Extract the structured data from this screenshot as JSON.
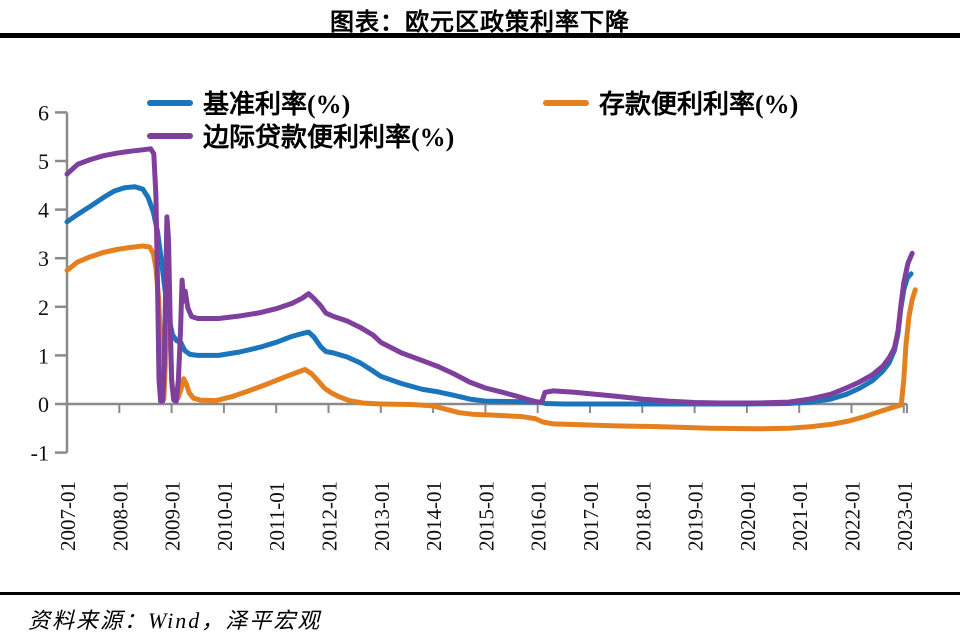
{
  "header": {
    "title": "图表：欧元区政策利率下降"
  },
  "legend": [
    {
      "key": "benchmark-rate",
      "label": "基准利率(%)",
      "color": "#1b75bc"
    },
    {
      "key": "deposit-facility-rate",
      "label": "存款便利利率(%)",
      "color": "#e5801f"
    },
    {
      "key": "marginal-lending-rate",
      "label": "边际贷款便利利率(%)",
      "color": "#7e3f9d"
    }
  ],
  "footer": {
    "source": "资料来源：Wind，泽平宏观"
  },
  "chart_data": {
    "type": "line",
    "title": "图表：欧元区政策利率下降",
    "xlabel": "",
    "ylabel": "",
    "grid": false,
    "legend_position": "top",
    "ylim": [
      -1,
      6
    ],
    "xlim": [
      2007,
      2023.25
    ],
    "y_ticks": [
      6,
      5,
      4,
      3,
      2,
      1,
      0,
      -1
    ],
    "x_ticks": [
      "2007-01",
      "2008-01",
      "2009-01",
      "2010-01",
      "2011-01",
      "2012-01",
      "2013-01",
      "2014-01",
      "2015-01",
      "2016-01",
      "2017-01",
      "2018-01",
      "2019-01",
      "2020-01",
      "2021-01",
      "2022-01",
      "2023-01"
    ],
    "axis_color": "#8a8a8a",
    "series": [
      {
        "name": "基准利率(%)",
        "key": "benchmark-rate",
        "color": "#1b75bc",
        "points": [
          [
            2007.0,
            3.75
          ],
          [
            2007.2,
            3.9
          ],
          [
            2007.45,
            4.07
          ],
          [
            2007.7,
            4.25
          ],
          [
            2007.9,
            4.38
          ],
          [
            2008.1,
            4.45
          ],
          [
            2008.3,
            4.47
          ],
          [
            2008.45,
            4.42
          ],
          [
            2008.55,
            4.25
          ],
          [
            2008.65,
            3.95
          ],
          [
            2008.73,
            3.55
          ],
          [
            2008.8,
            3.0
          ],
          [
            2008.88,
            2.3
          ],
          [
            2008.95,
            1.75
          ],
          [
            2009.02,
            1.42
          ],
          [
            2009.1,
            1.3
          ],
          [
            2009.18,
            1.26
          ],
          [
            2009.25,
            1.1
          ],
          [
            2009.35,
            1.02
          ],
          [
            2009.5,
            1.0
          ],
          [
            2009.9,
            1.0
          ],
          [
            2010.3,
            1.07
          ],
          [
            2010.7,
            1.17
          ],
          [
            2011.0,
            1.27
          ],
          [
            2011.3,
            1.39
          ],
          [
            2011.5,
            1.45
          ],
          [
            2011.62,
            1.48
          ],
          [
            2011.72,
            1.38
          ],
          [
            2011.85,
            1.18
          ],
          [
            2011.95,
            1.08
          ],
          [
            2012.1,
            1.05
          ],
          [
            2012.35,
            0.97
          ],
          [
            2012.6,
            0.85
          ],
          [
            2012.85,
            0.68
          ],
          [
            2013.0,
            0.57
          ],
          [
            2013.4,
            0.42
          ],
          [
            2013.8,
            0.3
          ],
          [
            2014.1,
            0.25
          ],
          [
            2014.4,
            0.18
          ],
          [
            2014.7,
            0.1
          ],
          [
            2015.0,
            0.06
          ],
          [
            2015.6,
            0.05
          ],
          [
            2016.05,
            0.04
          ],
          [
            2016.15,
            0.01
          ],
          [
            2016.5,
            0.0
          ],
          [
            2018.0,
            0.0
          ],
          [
            2020.0,
            0.0
          ],
          [
            2020.8,
            0.01
          ],
          [
            2021.2,
            0.04
          ],
          [
            2021.6,
            0.1
          ],
          [
            2021.9,
            0.2
          ],
          [
            2022.15,
            0.32
          ],
          [
            2022.4,
            0.48
          ],
          [
            2022.6,
            0.68
          ],
          [
            2022.72,
            0.85
          ],
          [
            2022.82,
            1.1
          ],
          [
            2022.89,
            1.45
          ],
          [
            2022.94,
            1.95
          ],
          [
            2023.0,
            2.35
          ],
          [
            2023.07,
            2.6
          ],
          [
            2023.14,
            2.68
          ]
        ]
      },
      {
        "name": "存款便利利率(%)",
        "key": "deposit-facility-rate",
        "color": "#e5801f",
        "points": [
          [
            2007.0,
            2.75
          ],
          [
            2007.2,
            2.92
          ],
          [
            2007.45,
            3.03
          ],
          [
            2007.7,
            3.12
          ],
          [
            2007.95,
            3.18
          ],
          [
            2008.2,
            3.22
          ],
          [
            2008.45,
            3.25
          ],
          [
            2008.58,
            3.23
          ],
          [
            2008.65,
            3.1
          ],
          [
            2008.7,
            2.8
          ],
          [
            2008.75,
            2.2
          ],
          [
            2008.79,
            1.3
          ],
          [
            2008.82,
            0.5
          ],
          [
            2008.85,
            0.1
          ],
          [
            2008.88,
            0.8
          ],
          [
            2008.9,
            2.2
          ],
          [
            2008.92,
            3.15
          ],
          [
            2008.95,
            2.4
          ],
          [
            2008.98,
            1.1
          ],
          [
            2009.01,
            0.35
          ],
          [
            2009.05,
            0.1
          ],
          [
            2009.12,
            0.12
          ],
          [
            2009.18,
            0.3
          ],
          [
            2009.23,
            0.52
          ],
          [
            2009.28,
            0.42
          ],
          [
            2009.34,
            0.22
          ],
          [
            2009.42,
            0.12
          ],
          [
            2009.55,
            0.08
          ],
          [
            2009.85,
            0.07
          ],
          [
            2010.15,
            0.15
          ],
          [
            2010.5,
            0.28
          ],
          [
            2010.85,
            0.42
          ],
          [
            2011.15,
            0.55
          ],
          [
            2011.4,
            0.65
          ],
          [
            2011.55,
            0.71
          ],
          [
            2011.68,
            0.62
          ],
          [
            2011.8,
            0.48
          ],
          [
            2011.92,
            0.33
          ],
          [
            2012.05,
            0.23
          ],
          [
            2012.2,
            0.15
          ],
          [
            2012.4,
            0.07
          ],
          [
            2012.65,
            0.02
          ],
          [
            2013.0,
            0.0
          ],
          [
            2013.6,
            -0.01
          ],
          [
            2014.0,
            -0.04
          ],
          [
            2014.25,
            -0.11
          ],
          [
            2014.5,
            -0.18
          ],
          [
            2014.75,
            -0.21
          ],
          [
            2015.2,
            -0.23
          ],
          [
            2015.7,
            -0.26
          ],
          [
            2015.95,
            -0.3
          ],
          [
            2016.1,
            -0.37
          ],
          [
            2016.3,
            -0.41
          ],
          [
            2016.9,
            -0.43
          ],
          [
            2017.5,
            -0.45
          ],
          [
            2018.1,
            -0.46
          ],
          [
            2018.7,
            -0.48
          ],
          [
            2019.3,
            -0.5
          ],
          [
            2020.2,
            -0.51
          ],
          [
            2020.8,
            -0.5
          ],
          [
            2021.2,
            -0.47
          ],
          [
            2021.6,
            -0.42
          ],
          [
            2021.95,
            -0.35
          ],
          [
            2022.25,
            -0.26
          ],
          [
            2022.5,
            -0.17
          ],
          [
            2022.7,
            -0.1
          ],
          [
            2022.85,
            -0.05
          ],
          [
            2022.95,
            -0.02
          ],
          [
            2023.0,
            0.5
          ],
          [
            2023.04,
            1.2
          ],
          [
            2023.1,
            1.8
          ],
          [
            2023.16,
            2.15
          ],
          [
            2023.22,
            2.35
          ]
        ]
      },
      {
        "name": "边际贷款便利利率(%)",
        "key": "marginal-lending-rate",
        "color": "#7e3f9d",
        "points": [
          [
            2007.0,
            4.73
          ],
          [
            2007.2,
            4.93
          ],
          [
            2007.45,
            5.03
          ],
          [
            2007.7,
            5.11
          ],
          [
            2007.95,
            5.16
          ],
          [
            2008.2,
            5.2
          ],
          [
            2008.45,
            5.23
          ],
          [
            2008.6,
            5.25
          ],
          [
            2008.66,
            5.15
          ],
          [
            2008.7,
            4.3
          ],
          [
            2008.73,
            2.5
          ],
          [
            2008.76,
            0.5
          ],
          [
            2008.79,
            0.06
          ],
          [
            2008.83,
            0.06
          ],
          [
            2008.86,
            0.8
          ],
          [
            2008.89,
            2.6
          ],
          [
            2008.91,
            3.85
          ],
          [
            2008.94,
            3.4
          ],
          [
            2008.97,
            1.9
          ],
          [
            2009.0,
            0.5
          ],
          [
            2009.04,
            0.08
          ],
          [
            2009.09,
            0.06
          ],
          [
            2009.13,
            0.5
          ],
          [
            2009.17,
            1.5
          ],
          [
            2009.2,
            2.55
          ],
          [
            2009.23,
            2.12
          ],
          [
            2009.26,
            2.32
          ],
          [
            2009.31,
            1.98
          ],
          [
            2009.38,
            1.8
          ],
          [
            2009.5,
            1.76
          ],
          [
            2009.9,
            1.76
          ],
          [
            2010.3,
            1.81
          ],
          [
            2010.7,
            1.88
          ],
          [
            2011.0,
            1.96
          ],
          [
            2011.3,
            2.07
          ],
          [
            2011.5,
            2.18
          ],
          [
            2011.62,
            2.27
          ],
          [
            2011.72,
            2.17
          ],
          [
            2011.85,
            2.02
          ],
          [
            2011.95,
            1.87
          ],
          [
            2012.1,
            1.8
          ],
          [
            2012.35,
            1.71
          ],
          [
            2012.6,
            1.58
          ],
          [
            2012.85,
            1.42
          ],
          [
            2013.0,
            1.27
          ],
          [
            2013.4,
            1.05
          ],
          [
            2013.8,
            0.89
          ],
          [
            2014.1,
            0.77
          ],
          [
            2014.4,
            0.62
          ],
          [
            2014.7,
            0.45
          ],
          [
            2015.0,
            0.33
          ],
          [
            2015.3,
            0.25
          ],
          [
            2015.6,
            0.16
          ],
          [
            2015.85,
            0.08
          ],
          [
            2016.0,
            0.04
          ],
          [
            2016.08,
            0.05
          ],
          [
            2016.14,
            0.24
          ],
          [
            2016.3,
            0.27
          ],
          [
            2016.7,
            0.24
          ],
          [
            2017.1,
            0.2
          ],
          [
            2017.5,
            0.16
          ],
          [
            2018.0,
            0.1
          ],
          [
            2018.5,
            0.06
          ],
          [
            2019.0,
            0.03
          ],
          [
            2019.5,
            0.02
          ],
          [
            2020.2,
            0.02
          ],
          [
            2020.8,
            0.04
          ],
          [
            2021.2,
            0.1
          ],
          [
            2021.6,
            0.2
          ],
          [
            2021.9,
            0.33
          ],
          [
            2022.15,
            0.45
          ],
          [
            2022.4,
            0.6
          ],
          [
            2022.6,
            0.78
          ],
          [
            2022.72,
            0.95
          ],
          [
            2022.82,
            1.15
          ],
          [
            2022.89,
            1.5
          ],
          [
            2022.94,
            2.0
          ],
          [
            2023.0,
            2.5
          ],
          [
            2023.08,
            2.9
          ],
          [
            2023.16,
            3.1
          ]
        ]
      }
    ]
  }
}
